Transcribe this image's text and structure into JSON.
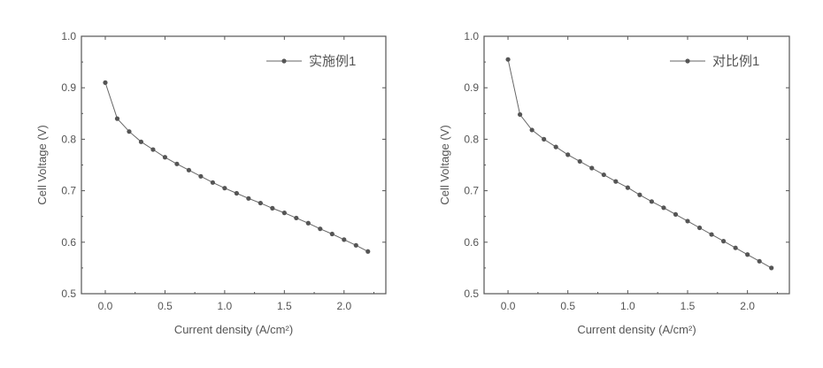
{
  "chart_data": [
    {
      "type": "line",
      "panel": "left",
      "xlabel": "Current density (A/cm²)",
      "ylabel": "Cell Voltage (V)",
      "xlim": [
        -0.2,
        2.35
      ],
      "ylim": [
        0.5,
        1.0
      ],
      "xticks": [
        "0.0",
        "0.5",
        "1.0",
        "1.5",
        "2.0"
      ],
      "xtick_values": [
        0.0,
        0.5,
        1.0,
        1.5,
        2.0
      ],
      "yticks": [
        "0.5",
        "0.6",
        "0.7",
        "0.8",
        "0.9",
        "1.0"
      ],
      "ytick_values": [
        0.5,
        0.6,
        0.7,
        0.8,
        0.9,
        1.0
      ],
      "legend_position": "top-right",
      "grid": false,
      "series": [
        {
          "name": "实施例1",
          "x": [
            0.0,
            0.1,
            0.2,
            0.3,
            0.4,
            0.5,
            0.6,
            0.7,
            0.8,
            0.9,
            1.0,
            1.1,
            1.2,
            1.3,
            1.4,
            1.5,
            1.6,
            1.7,
            1.8,
            1.9,
            2.0,
            2.1,
            2.2
          ],
          "y": [
            0.91,
            0.84,
            0.815,
            0.795,
            0.78,
            0.765,
            0.752,
            0.74,
            0.728,
            0.716,
            0.705,
            0.695,
            0.685,
            0.676,
            0.666,
            0.657,
            0.647,
            0.637,
            0.626,
            0.616,
            0.605,
            0.594,
            0.582
          ]
        }
      ]
    },
    {
      "type": "line",
      "panel": "right",
      "xlabel": "Current density (A/cm²)",
      "ylabel": "Cell Voltage (V)",
      "xlim": [
        -0.2,
        2.35
      ],
      "ylim": [
        0.5,
        1.0
      ],
      "xticks": [
        "0.0",
        "0.5",
        "1.0",
        "1.5",
        "2.0"
      ],
      "xtick_values": [
        0.0,
        0.5,
        1.0,
        1.5,
        2.0
      ],
      "yticks": [
        "0.5",
        "0.6",
        "0.7",
        "0.8",
        "0.9",
        "1.0"
      ],
      "ytick_values": [
        0.5,
        0.6,
        0.7,
        0.8,
        0.9,
        1.0
      ],
      "legend_position": "top-right",
      "grid": false,
      "series": [
        {
          "name": "对比例1",
          "x": [
            0.0,
            0.1,
            0.2,
            0.3,
            0.4,
            0.5,
            0.6,
            0.7,
            0.8,
            0.9,
            1.0,
            1.1,
            1.2,
            1.3,
            1.4,
            1.5,
            1.6,
            1.7,
            1.8,
            1.9,
            2.0,
            2.1,
            2.2
          ],
          "y": [
            0.955,
            0.848,
            0.818,
            0.8,
            0.785,
            0.77,
            0.757,
            0.744,
            0.731,
            0.718,
            0.706,
            0.692,
            0.679,
            0.667,
            0.654,
            0.641,
            0.628,
            0.615,
            0.602,
            0.589,
            0.576,
            0.563,
            0.55
          ]
        }
      ]
    }
  ]
}
